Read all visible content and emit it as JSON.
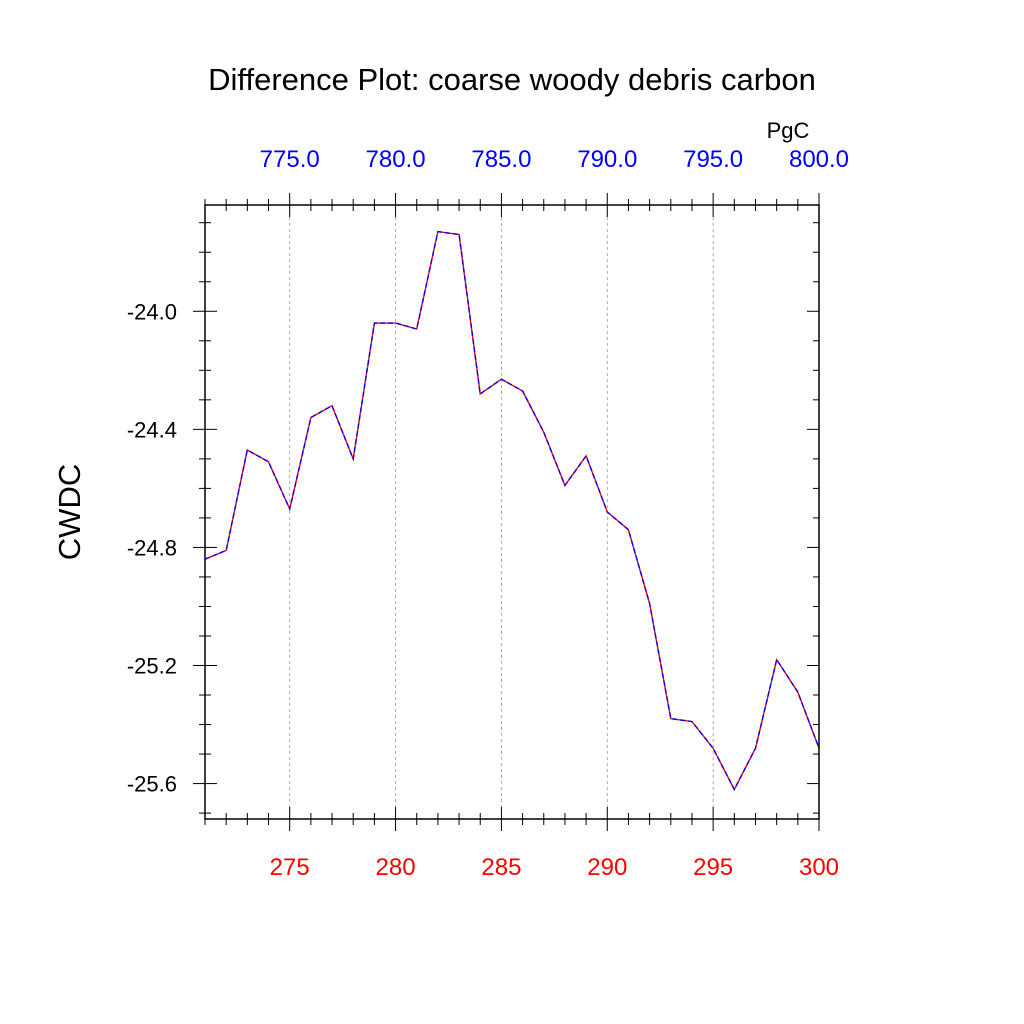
{
  "chart_data": {
    "type": "line",
    "title": "Difference Plot: coarse woody debris carbon",
    "ylabel": "CWDC",
    "top_axis_unit": "PgC",
    "x": [
      271,
      272,
      273,
      274,
      275,
      276,
      277,
      278,
      279,
      280,
      281,
      282,
      283,
      284,
      285,
      286,
      287,
      288,
      289,
      290,
      291,
      292,
      293,
      294,
      295,
      296,
      297,
      298,
      299,
      300
    ],
    "series": [
      {
        "values": [
          -24.84,
          -24.81,
          -24.47,
          -24.51,
          -24.67,
          -24.36,
          -24.32,
          -24.5,
          -24.04,
          -24.04,
          -24.06,
          -23.73,
          -23.74,
          -24.28,
          -24.23,
          -24.27,
          -24.41,
          -24.59,
          -24.49,
          -24.68,
          -24.74,
          -24.99,
          -25.38,
          -25.39,
          -25.48,
          -25.62,
          -25.48,
          -25.18,
          -25.29,
          -25.48
        ],
        "color_solid": "#ff0000",
        "color_dash": "#0000ff"
      }
    ],
    "xlim": [
      271,
      300
    ],
    "ylim": [
      -25.72,
      -23.64
    ],
    "xticks": [
      275,
      280,
      285,
      290,
      295,
      300
    ],
    "xtick_labels": [
      "275",
      "280",
      "285",
      "290",
      "295",
      "300"
    ],
    "xtick_color": "#ff0000",
    "top_xlim": [
      771.0,
      800.0
    ],
    "top_xticks": [
      775.0,
      780.0,
      785.0,
      790.0,
      795.0,
      800.0
    ],
    "top_xtick_labels": [
      "775.0",
      "780.0",
      "785.0",
      "790.0",
      "795.0",
      "800.0"
    ],
    "top_xtick_color": "#0000ff",
    "yticks": [
      -24.0,
      -24.4,
      -24.8,
      -25.2,
      -25.6
    ],
    "ytick_labels": [
      "-24.0",
      "-24.4",
      "-24.8",
      "-25.2",
      "-25.6"
    ],
    "grid": "vertical dashed at major x ticks"
  }
}
